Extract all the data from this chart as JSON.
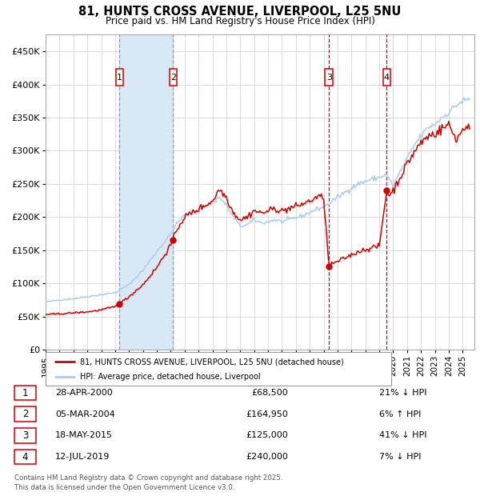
{
  "title": "81, HUNTS CROSS AVENUE, LIVERPOOL, L25 5NU",
  "subtitle": "Price paid vs. HM Land Registry's House Price Index (HPI)",
  "xlim_start": 1995.0,
  "xlim_end": 2025.83,
  "ylim": [
    0,
    475000
  ],
  "yticks": [
    0,
    50000,
    100000,
    150000,
    200000,
    250000,
    300000,
    350000,
    400000,
    450000
  ],
  "ytick_labels": [
    "£0",
    "£50K",
    "£100K",
    "£150K",
    "£200K",
    "£250K",
    "£300K",
    "£350K",
    "£400K",
    "£450K"
  ],
  "xticks": [
    1995,
    1996,
    1997,
    1998,
    1999,
    2000,
    2001,
    2002,
    2003,
    2004,
    2005,
    2006,
    2007,
    2008,
    2009,
    2010,
    2011,
    2012,
    2013,
    2014,
    2015,
    2016,
    2017,
    2018,
    2019,
    2020,
    2021,
    2022,
    2023,
    2024,
    2025
  ],
  "sale_dates": [
    2000.32,
    2004.17,
    2015.38,
    2019.53
  ],
  "sale_prices": [
    68500,
    164950,
    125000,
    240000
  ],
  "sale_labels": [
    "1",
    "2",
    "3",
    "4"
  ],
  "hpi_color": "#aaccee",
  "red_line_color": "#cc0000",
  "sale_dot_color": "#cc0000",
  "shade_color": "#d8e8f4",
  "vline_color_12": "#8899bb",
  "vline_color_34": "#cc0000",
  "grid_color": "#cccccc",
  "legend_house_label": "81, HUNTS CROSS AVENUE, LIVERPOOL, L25 5NU (detached house)",
  "legend_hpi_label": "HPI: Average price, detached house, Liverpool",
  "table_rows": [
    [
      "1",
      "28-APR-2000",
      "£68,500",
      "21% ↓ HPI"
    ],
    [
      "2",
      "05-MAR-2004",
      "£164,950",
      "6% ↑ HPI"
    ],
    [
      "3",
      "18-MAY-2015",
      "£125,000",
      "41% ↓ HPI"
    ],
    [
      "4",
      "12-JUL-2019",
      "£240,000",
      "7% ↓ HPI"
    ]
  ],
  "footer_text": "Contains HM Land Registry data © Crown copyright and database right 2025.\nThis data is licensed under the Open Government Licence v3.0."
}
